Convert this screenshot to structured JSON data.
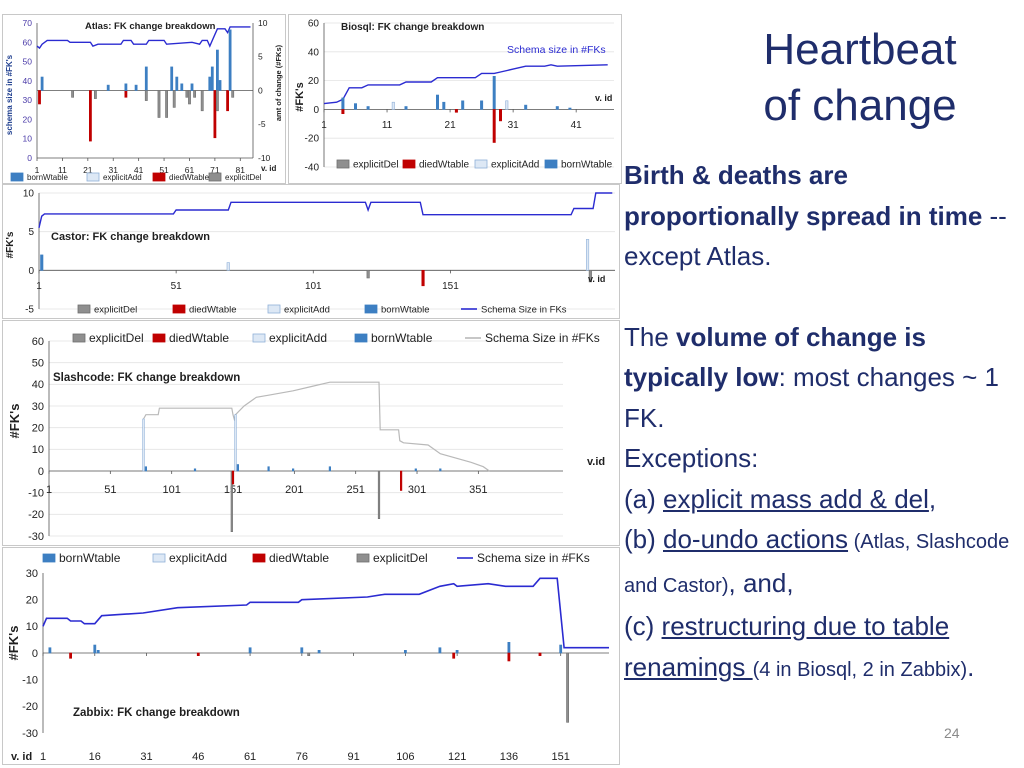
{
  "slide": {
    "title_line1": "Heartbeat",
    "title_line2": "of change",
    "para1": {
      "bold1": "Birth & deaths are proportionally spread in time",
      "normal1": " -- except Atlas."
    },
    "para2": {
      "t1": "The ",
      "b1": "volume of change is typically  low",
      "t2": ": most changes ~ 1 FK.",
      "t3": "Exceptions:",
      "a_prefix": "(a) ",
      "a_u": "explicit mass add & del",
      "a_suffix": ",",
      "b_prefix": "(b) ",
      "b_u": "do-undo actions",
      "b_small": " (Atlas, Slashcode and Castor)",
      "b_suffix": ", and,",
      "c_prefix": "(c) ",
      "c_u": "restructuring due to table renamings ",
      "c_small": "(4 in Biosql, 2 in Zabbix)",
      "c_suffix": "."
    },
    "page_number": "24"
  },
  "colors": {
    "title": "#1f2d6b",
    "schema_line_blue": "#2b2bd1",
    "schema_line_gray": "#b9b9b9",
    "bornWtable": "#3d7fc2",
    "diedWtable": "#c00000",
    "explicitAdd": "#dde8f5",
    "explicitDel": "#8f8f8f"
  },
  "chart_data": [
    {
      "id": "atlas",
      "type": "bar",
      "title": "Atlas: FK change breakdown",
      "xlabel": "v. id",
      "ylabel_left": "schema size in #FK's",
      "ylabel_right": "amt of change (#FKs)",
      "x_ticks": [
        1,
        11,
        21,
        31,
        41,
        51,
        61,
        71,
        81
      ],
      "x_range": [
        1,
        86
      ],
      "y_left_ticks": [
        0,
        10,
        20,
        30,
        40,
        50,
        60,
        70
      ],
      "y_left_range": [
        0,
        70
      ],
      "y_right_ticks": [
        -10,
        -5,
        0,
        5,
        10
      ],
      "y_right_range": [
        -10,
        10
      ],
      "legend": [
        "bornWtable",
        "explicitAdd",
        "diedWtable",
        "explicitDel"
      ],
      "schema_size": [
        [
          1,
          58
        ],
        [
          2,
          57
        ],
        [
          3,
          59
        ],
        [
          5,
          61
        ],
        [
          13,
          61
        ],
        [
          14,
          60
        ],
        [
          22,
          60
        ],
        [
          23,
          58
        ],
        [
          25,
          59
        ],
        [
          34,
          59
        ],
        [
          35,
          61
        ],
        [
          38,
          61
        ],
        [
          39,
          59
        ],
        [
          44,
          59
        ],
        [
          45,
          61
        ],
        [
          51,
          61
        ],
        [
          52,
          59
        ],
        [
          62,
          60
        ],
        [
          65,
          59
        ],
        [
          66,
          61
        ],
        [
          68,
          61
        ],
        [
          69,
          58
        ],
        [
          70,
          61
        ],
        [
          72,
          67
        ],
        [
          75,
          67
        ],
        [
          76,
          65
        ],
        [
          77,
          68
        ],
        [
          85,
          68
        ]
      ],
      "bars": [
        {
          "x": 3,
          "v": 2.0,
          "s": "bornWtable"
        },
        {
          "x": 2,
          "v": -2.0,
          "s": "diedWtable"
        },
        {
          "x": 15,
          "v": -1.0,
          "s": "explicitDel"
        },
        {
          "x": 22,
          "v": -7.5,
          "s": "diedWtable"
        },
        {
          "x": 24,
          "v": -1.2,
          "s": "explicitDel"
        },
        {
          "x": 29,
          "v": 0.8,
          "s": "bornWtable"
        },
        {
          "x": 36,
          "v": -1.0,
          "s": "diedWtable"
        },
        {
          "x": 36,
          "v": 1.0,
          "s": "bornWtable"
        },
        {
          "x": 40,
          "v": 0.8,
          "s": "bornWtable"
        },
        {
          "x": 44,
          "v": 3.5,
          "s": "bornWtable"
        },
        {
          "x": 44,
          "v": -1.5,
          "s": "explicitDel"
        },
        {
          "x": 49,
          "v": -4.0,
          "s": "explicitDel"
        },
        {
          "x": 52,
          "v": -4.0,
          "s": "explicitDel"
        },
        {
          "x": 54,
          "v": 3.5,
          "s": "bornWtable"
        },
        {
          "x": 55,
          "v": -2.5,
          "s": "explicitDel"
        },
        {
          "x": 56,
          "v": 2.0,
          "s": "bornWtable"
        },
        {
          "x": 58,
          "v": 1.0,
          "s": "bornWtable"
        },
        {
          "x": 60,
          "v": -1.0,
          "s": "explicitDel"
        },
        {
          "x": 61,
          "v": -2.0,
          "s": "explicitDel"
        },
        {
          "x": 62,
          "v": 1.0,
          "s": "bornWtable"
        },
        {
          "x": 63,
          "v": -1.0,
          "s": "explicitDel"
        },
        {
          "x": 66,
          "v": -3.0,
          "s": "explicitDel"
        },
        {
          "x": 69,
          "v": 2.0,
          "s": "bornWtable"
        },
        {
          "x": 70,
          "v": 3.5,
          "s": "bornWtable"
        },
        {
          "x": 71,
          "v": -7.0,
          "s": "diedWtable"
        },
        {
          "x": 72,
          "v": 6.0,
          "s": "bornWtable"
        },
        {
          "x": 72,
          "v": -3.0,
          "s": "explicitDel"
        },
        {
          "x": 73,
          "v": 1.5,
          "s": "bornWtable"
        },
        {
          "x": 76,
          "v": -3.0,
          "s": "diedWtable"
        },
        {
          "x": 77,
          "v": 9.0,
          "s": "bornWtable"
        },
        {
          "x": 78,
          "v": -1.0,
          "s": "explicitDel"
        }
      ]
    },
    {
      "id": "biosql",
      "type": "bar",
      "title": "Biosql: FK change breakdown",
      "annotation": "Schema size in #FKs",
      "xlabel": "v. id",
      "ylabel": "#FK's",
      "x_ticks": [
        1,
        11,
        21,
        31,
        41
      ],
      "x_range": [
        1,
        47
      ],
      "y_ticks": [
        -40,
        -20,
        0,
        20,
        40,
        60
      ],
      "y_range": [
        -40,
        60
      ],
      "legend": [
        "explicitDel",
        "diedWtable",
        "explicitAdd",
        "bornWtable"
      ],
      "schema_size": [
        [
          1,
          4
        ],
        [
          3,
          5
        ],
        [
          4,
          7
        ],
        [
          5,
          15
        ],
        [
          7,
          15
        ],
        [
          8,
          17
        ],
        [
          13,
          17
        ],
        [
          14,
          19
        ],
        [
          18,
          19
        ],
        [
          19,
          22
        ],
        [
          25,
          22
        ],
        [
          26,
          25
        ],
        [
          28,
          25
        ],
        [
          29,
          26
        ],
        [
          31,
          28
        ],
        [
          33,
          30
        ],
        [
          36,
          30
        ],
        [
          37,
          31
        ],
        [
          38,
          30
        ],
        [
          46,
          31
        ]
      ],
      "bars": [
        {
          "x": 4,
          "v": 8,
          "s": "bornWtable"
        },
        {
          "x": 4,
          "v": -3,
          "s": "diedWtable"
        },
        {
          "x": 6,
          "v": 4,
          "s": "bornWtable"
        },
        {
          "x": 8,
          "v": 2,
          "s": "bornWtable"
        },
        {
          "x": 12,
          "v": 5,
          "s": "explicitAdd"
        },
        {
          "x": 14,
          "v": 2,
          "s": "bornWtable"
        },
        {
          "x": 19,
          "v": 10,
          "s": "bornWtable"
        },
        {
          "x": 20,
          "v": 5,
          "s": "bornWtable"
        },
        {
          "x": 22,
          "v": -2,
          "s": "diedWtable"
        },
        {
          "x": 23,
          "v": 6,
          "s": "bornWtable"
        },
        {
          "x": 26,
          "v": 6,
          "s": "bornWtable"
        },
        {
          "x": 28,
          "v": 23,
          "s": "bornWtable"
        },
        {
          "x": 28,
          "v": -23,
          "s": "diedWtable"
        },
        {
          "x": 29,
          "v": -8,
          "s": "diedWtable"
        },
        {
          "x": 30,
          "v": 6,
          "s": "explicitAdd"
        },
        {
          "x": 33,
          "v": 3,
          "s": "bornWtable"
        },
        {
          "x": 38,
          "v": 2,
          "s": "bornWtable"
        },
        {
          "x": 40,
          "v": 1,
          "s": "bornWtable"
        }
      ]
    },
    {
      "id": "castor",
      "type": "bar",
      "title": "Castor: FK change breakdown",
      "xlabel": "v. id",
      "ylabel": "#FK's",
      "x_ticks": [
        1,
        51,
        101,
        151
      ],
      "x_range": [
        1,
        211
      ],
      "y_ticks": [
        -5,
        0,
        5,
        10
      ],
      "y_range": [
        -5,
        10
      ],
      "legend": [
        "explicitDel",
        "diedWtable",
        "explicitAdd",
        "bornWtable",
        "Schema Size in FKs"
      ],
      "schema_size": [
        [
          1,
          5.5
        ],
        [
          2,
          7
        ],
        [
          3,
          7.3
        ],
        [
          50,
          7.3
        ],
        [
          51,
          7.8
        ],
        [
          70,
          7.8
        ],
        [
          71,
          8.8
        ],
        [
          120,
          8.8
        ],
        [
          121,
          7.8
        ],
        [
          122,
          8.8
        ],
        [
          140,
          8.8
        ],
        [
          141,
          7.2
        ],
        [
          195,
          7.2
        ],
        [
          196,
          8
        ],
        [
          203,
          8
        ],
        [
          204,
          10
        ],
        [
          210,
          10
        ]
      ],
      "bars": [
        {
          "x": 2,
          "v": 2.0,
          "s": "bornWtable"
        },
        {
          "x": 70,
          "v": 1.0,
          "s": "explicitAdd"
        },
        {
          "x": 121,
          "v": -1.0,
          "s": "explicitDel"
        },
        {
          "x": 141,
          "v": -2.0,
          "s": "diedWtable"
        },
        {
          "x": 201,
          "v": 4.0,
          "s": "explicitAdd"
        },
        {
          "x": 202,
          "v": -1.5,
          "s": "explicitDel"
        }
      ]
    },
    {
      "id": "slashcode",
      "type": "bar",
      "title": "Slashcode: FK change breakdown",
      "xlabel": "v.id",
      "ylabel": "#FK's",
      "x_ticks": [
        1,
        51,
        101,
        151,
        201,
        251,
        301,
        351
      ],
      "x_range": [
        1,
        420
      ],
      "y_ticks": [
        -30,
        -20,
        -10,
        0,
        10,
        20,
        30,
        40,
        50,
        60
      ],
      "y_range": [
        -30,
        60
      ],
      "legend": [
        "explicitDel",
        "diedWtable",
        "explicitAdd",
        "bornWtable",
        "Schema Size in #FKs"
      ],
      "schema_size": [
        [
          78,
          24
        ],
        [
          80,
          26
        ],
        [
          90,
          26
        ],
        [
          91,
          29
        ],
        [
          150,
          29
        ],
        [
          151,
          26
        ],
        [
          152,
          24
        ],
        [
          153,
          26
        ],
        [
          160,
          30
        ],
        [
          170,
          34
        ],
        [
          180,
          35
        ],
        [
          200,
          37
        ],
        [
          215,
          39
        ],
        [
          230,
          41
        ],
        [
          270,
          41
        ],
        [
          271,
          19
        ],
        [
          286,
          19
        ],
        [
          287,
          14
        ],
        [
          290,
          13
        ],
        [
          310,
          12
        ],
        [
          320,
          8
        ],
        [
          345,
          4
        ],
        [
          355,
          2
        ],
        [
          360,
          0
        ]
      ],
      "bars": [
        {
          "x": 78,
          "v": 24,
          "s": "explicitAdd"
        },
        {
          "x": 80,
          "v": 2,
          "s": "bornWtable"
        },
        {
          "x": 120,
          "v": 1,
          "s": "bornWtable"
        },
        {
          "x": 150,
          "v": -28,
          "s": "explicitDel"
        },
        {
          "x": 151,
          "v": -6,
          "s": "diedWtable"
        },
        {
          "x": 153,
          "v": 26,
          "s": "explicitAdd"
        },
        {
          "x": 155,
          "v": 3,
          "s": "bornWtable"
        },
        {
          "x": 180,
          "v": 2,
          "s": "bornWtable"
        },
        {
          "x": 200,
          "v": 1,
          "s": "bornWtable"
        },
        {
          "x": 230,
          "v": 2,
          "s": "bornWtable"
        },
        {
          "x": 270,
          "v": -22,
          "s": "explicitDel"
        },
        {
          "x": 288,
          "v": -9,
          "s": "diedWtable"
        },
        {
          "x": 300,
          "v": 1,
          "s": "bornWtable"
        },
        {
          "x": 320,
          "v": 1,
          "s": "bornWtable"
        }
      ]
    },
    {
      "id": "zabbix",
      "type": "bar",
      "title": "Zabbix: FK change breakdown",
      "xlabel": "v. id",
      "ylabel": "#FK's",
      "x_ticks": [
        1,
        16,
        31,
        46,
        61,
        76,
        91,
        106,
        121,
        136,
        151
      ],
      "x_range": [
        1,
        165
      ],
      "y_ticks": [
        -30,
        -20,
        -10,
        0,
        10,
        20,
        30
      ],
      "y_range": [
        -30,
        30
      ],
      "legend": [
        "bornWtable",
        "explicitAdd",
        "diedWtable",
        "explicitDel",
        "Schema size in #FKs"
      ],
      "schema_size": [
        [
          1,
          10
        ],
        [
          2,
          13
        ],
        [
          8,
          13
        ],
        [
          9,
          12
        ],
        [
          12,
          12
        ],
        [
          13,
          11
        ],
        [
          16,
          11
        ],
        [
          18,
          14
        ],
        [
          30,
          15
        ],
        [
          40,
          17
        ],
        [
          60,
          18
        ],
        [
          61,
          19
        ],
        [
          75,
          19
        ],
        [
          76,
          20
        ],
        [
          95,
          21
        ],
        [
          100,
          22
        ],
        [
          110,
          22
        ],
        [
          116,
          25
        ],
        [
          120,
          26
        ],
        [
          121,
          25
        ],
        [
          130,
          26
        ],
        [
          135,
          25
        ],
        [
          143,
          25
        ],
        [
          145,
          28
        ],
        [
          150,
          28
        ],
        [
          152,
          2
        ],
        [
          165,
          2
        ]
      ],
      "bars": [
        {
          "x": 3,
          "v": 2,
          "s": "bornWtable"
        },
        {
          "x": 9,
          "v": -2,
          "s": "diedWtable"
        },
        {
          "x": 16,
          "v": 3,
          "s": "bornWtable"
        },
        {
          "x": 17,
          "v": 1,
          "s": "bornWtable"
        },
        {
          "x": 46,
          "v": -1,
          "s": "diedWtable"
        },
        {
          "x": 61,
          "v": 2,
          "s": "bornWtable"
        },
        {
          "x": 76,
          "v": 2,
          "s": "bornWtable"
        },
        {
          "x": 78,
          "v": -1,
          "s": "explicitDel"
        },
        {
          "x": 81,
          "v": 1,
          "s": "bornWtable"
        },
        {
          "x": 106,
          "v": 1,
          "s": "bornWtable"
        },
        {
          "x": 116,
          "v": 2,
          "s": "bornWtable"
        },
        {
          "x": 120,
          "v": -2,
          "s": "diedWtable"
        },
        {
          "x": 121,
          "v": 1,
          "s": "bornWtable"
        },
        {
          "x": 136,
          "v": 4,
          "s": "bornWtable"
        },
        {
          "x": 136,
          "v": -3,
          "s": "diedWtable"
        },
        {
          "x": 145,
          "v": -1,
          "s": "diedWtable"
        },
        {
          "x": 151,
          "v": 3,
          "s": "bornWtable"
        },
        {
          "x": 153,
          "v": -26,
          "s": "explicitDel"
        }
      ]
    }
  ]
}
